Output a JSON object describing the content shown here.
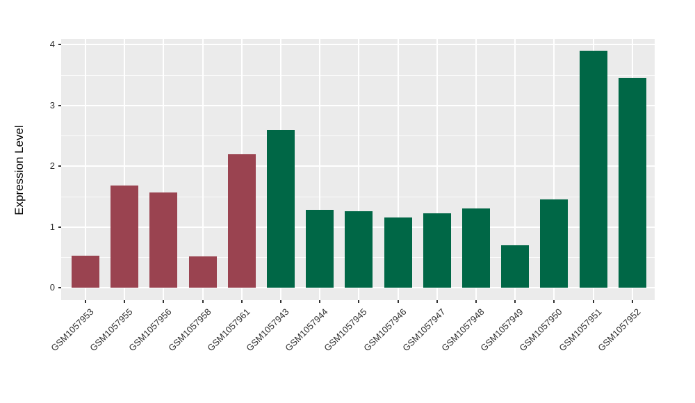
{
  "chart_data": {
    "type": "bar",
    "title": "",
    "xlabel": "",
    "ylabel": "Expression Level",
    "categories": [
      "GSM1057953",
      "GSM1057955",
      "GSM1057956",
      "GSM1057958",
      "GSM1057961",
      "GSM1057943",
      "GSM1057944",
      "GSM1057945",
      "GSM1057946",
      "GSM1057947",
      "GSM1057948",
      "GSM1057949",
      "GSM1057950",
      "GSM1057951",
      "GSM1057952"
    ],
    "values": [
      0.53,
      1.68,
      1.57,
      0.52,
      2.2,
      2.6,
      1.28,
      1.26,
      1.16,
      1.22,
      1.3,
      0.7,
      1.45,
      3.9,
      3.45
    ],
    "bar_groups": [
      "group1",
      "group1",
      "group1",
      "group1",
      "group1",
      "group2",
      "group2",
      "group2",
      "group2",
      "group2",
      "group2",
      "group2",
      "group2",
      "group2",
      "group2"
    ],
    "group_colors": {
      "group1": "#9A4350",
      "group2": "#006746"
    },
    "yticks": [
      0,
      1,
      2,
      3,
      4
    ],
    "yticks_minor": [
      0.5,
      1.5,
      2.5,
      3.5
    ],
    "ytick_labels": [
      "0",
      "1",
      "2",
      "3",
      "4"
    ],
    "ylim": [
      -0.195,
      4.095
    ],
    "legend": "none",
    "grid": true,
    "panel_bg": "#EBEBEB",
    "grid_color": "#FFFFFF"
  }
}
